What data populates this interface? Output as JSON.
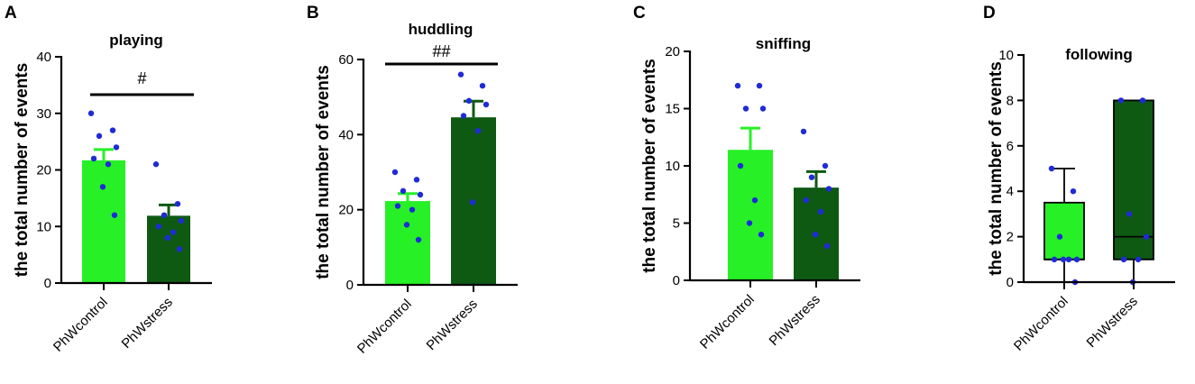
{
  "colors": {
    "control": "#27f027",
    "stress": "#0e5a12",
    "dot": "#1f2bd6",
    "axis": "#000000"
  },
  "chart_data": [
    {
      "panel": "A",
      "type": "bar",
      "title": "playing",
      "ylabel": "the total number of events",
      "ylim": [
        0,
        40
      ],
      "yticks": [
        0,
        10,
        20,
        30,
        40
      ],
      "categories": [
        "PhWcontrol",
        "PhWstress"
      ],
      "values": [
        21.7,
        11.9
      ],
      "sem": [
        1.9,
        1.9
      ],
      "points": [
        [
          30,
          27,
          26,
          24,
          22,
          21,
          17,
          12
        ],
        [
          21,
          14,
          12,
          11,
          10,
          9,
          8,
          6
        ]
      ],
      "significance": "#"
    },
    {
      "panel": "B",
      "type": "bar",
      "title": "huddling",
      "ylabel": "the total number of events",
      "ylim": [
        0,
        60
      ],
      "yticks": [
        0,
        20,
        40,
        60
      ],
      "categories": [
        "PhWcontrol",
        "PhWstress"
      ],
      "values": [
        22.3,
        44.6
      ],
      "sem": [
        2.0,
        4.3
      ],
      "points": [
        [
          30,
          28,
          25,
          24,
          21,
          20,
          16,
          12
        ],
        [
          56,
          53,
          49,
          48,
          45,
          41,
          22
        ]
      ],
      "significance": "##"
    },
    {
      "panel": "C",
      "type": "bar",
      "title": "sniffing",
      "ylabel": "the total number of events",
      "ylim": [
        0,
        20
      ],
      "yticks": [
        0,
        5,
        10,
        15,
        20
      ],
      "categories": [
        "PhWcontrol",
        "PhWstress"
      ],
      "values": [
        11.4,
        8.1
      ],
      "sem": [
        1.9,
        1.4
      ],
      "points": [
        [
          17,
          17,
          15,
          15,
          10,
          7,
          5,
          4
        ],
        [
          13,
          10,
          9,
          8,
          7,
          6,
          4,
          3
        ]
      ],
      "significance": ""
    },
    {
      "panel": "D",
      "type": "box",
      "title": "following",
      "ylabel": "the total number of events",
      "ylim": [
        0,
        10
      ],
      "yticks": [
        0,
        2,
        4,
        6,
        8,
        10
      ],
      "categories": [
        "PhWcontrol",
        "PhWstress"
      ],
      "boxes": [
        {
          "min": 0,
          "q1": 1,
          "median": 1,
          "q3": 3.5,
          "max": 5
        },
        {
          "min": 0,
          "q1": 1,
          "median": 2,
          "q3": 8,
          "max": 8
        }
      ],
      "points": [
        [
          5,
          4,
          2,
          1,
          1,
          1,
          1,
          0
        ],
        [
          8,
          8,
          3,
          2,
          1,
          1,
          0
        ]
      ],
      "significance": ""
    }
  ]
}
